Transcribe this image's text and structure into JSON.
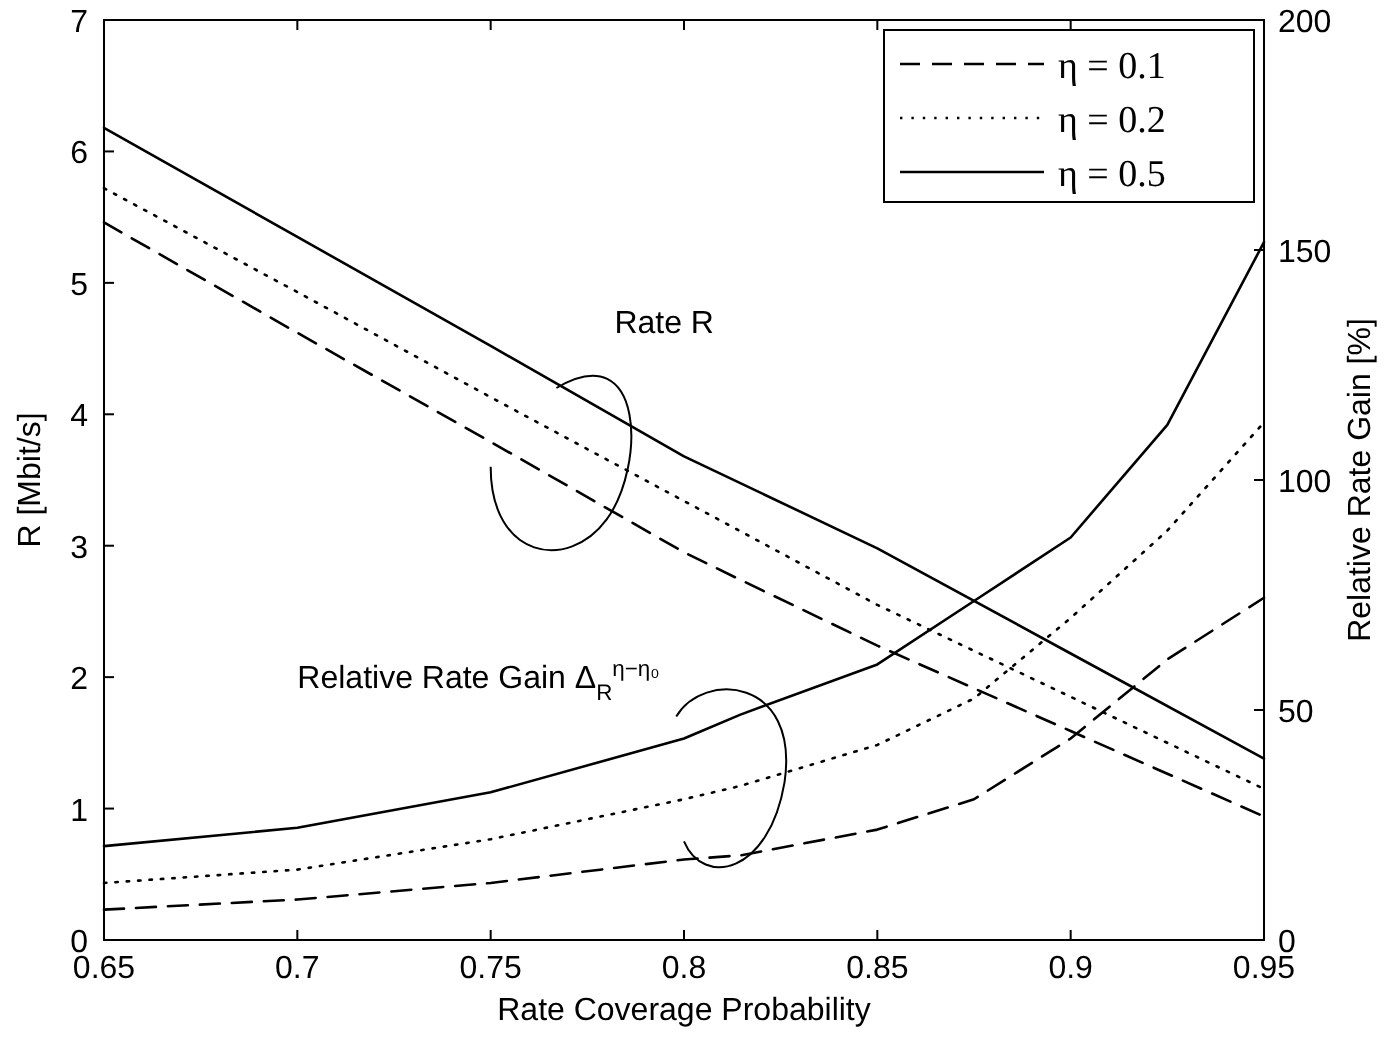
{
  "chart_data": {
    "type": "line",
    "xlabel": "Rate Coverage Probability",
    "ylabel": "R [Mbit/s]",
    "y2label": "Relative Rate Gain [%]",
    "xlim": [
      0.65,
      0.95
    ],
    "xticks": [
      0.65,
      0.7,
      0.75,
      0.8,
      0.85,
      0.9,
      0.95
    ],
    "ylim": [
      0,
      7
    ],
    "yticks": [
      0,
      1,
      2,
      3,
      4,
      5,
      6,
      7
    ],
    "y2lim": [
      0,
      200
    ],
    "y2ticks": [
      0,
      50,
      100,
      150,
      200
    ],
    "grid": false,
    "legend": "top right",
    "annotations": [
      "Rate R",
      "Relative Rate Gain Δ$_{R}$$^{η−η₀}$"
    ],
    "series": [
      {
        "name": "η = 0.1",
        "color": "#000000",
        "line_style": "dashed",
        "x": [
          0.65,
          0.7,
          0.75,
          0.8,
          0.8146,
          0.85,
          0.9,
          0.95
        ],
        "values": [
          5.46,
          4.62,
          3.79,
          2.95,
          2.74,
          2.24,
          1.59,
          0.94
        ]
      },
      {
        "name": "η = 0.2",
        "color": "#000000",
        "line_style": "dotted",
        "x": [
          0.65,
          0.7,
          0.75,
          0.8,
          0.8146,
          0.85,
          0.9,
          0.95
        ],
        "values": [
          5.72,
          4.93,
          4.13,
          3.34,
          3.11,
          2.55,
          1.85,
          1.15
        ]
      },
      {
        "name": "η = 0.5",
        "color": "#000000",
        "line_style": "solid",
        "x": [
          0.65,
          0.7,
          0.75,
          0.8,
          0.85,
          0.9,
          0.95
        ],
        "values": [
          6.18,
          5.35,
          4.52,
          3.68,
          2.98,
          2.18,
          1.38
        ]
      },
      {
        "color": "#000000",
        "line_style": "dashed",
        "axis": "y2",
        "x": [
          0.65,
          0.7,
          0.75,
          0.8,
          0.8146,
          0.85,
          0.875,
          0.9,
          0.925,
          0.95
        ],
        "values": [
          6.6,
          8.8,
          12.4,
          17.5,
          18.4,
          24,
          30.6,
          43.8,
          61,
          74.4
        ]
      },
      {
        "color": "#000000",
        "line_style": "dotted",
        "axis": "y2",
        "x": [
          0.65,
          0.7,
          0.75,
          0.8,
          0.8146,
          0.85,
          0.875,
          0.9,
          0.925,
          0.95
        ],
        "values": [
          12.4,
          15.3,
          21.9,
          30.6,
          33.5,
          42.4,
          52.5,
          70,
          89,
          112.5
        ]
      },
      {
        "color": "#000000",
        "line_style": "solid",
        "axis": "y2",
        "x": [
          0.65,
          0.7,
          0.75,
          0.8,
          0.8146,
          0.85,
          0.875,
          0.9,
          0.925,
          0.95
        ],
        "values": [
          20.4,
          24.4,
          32.1,
          43.8,
          49,
          59.9,
          73.7,
          87.5,
          112,
          151.7
        ]
      }
    ]
  }
}
